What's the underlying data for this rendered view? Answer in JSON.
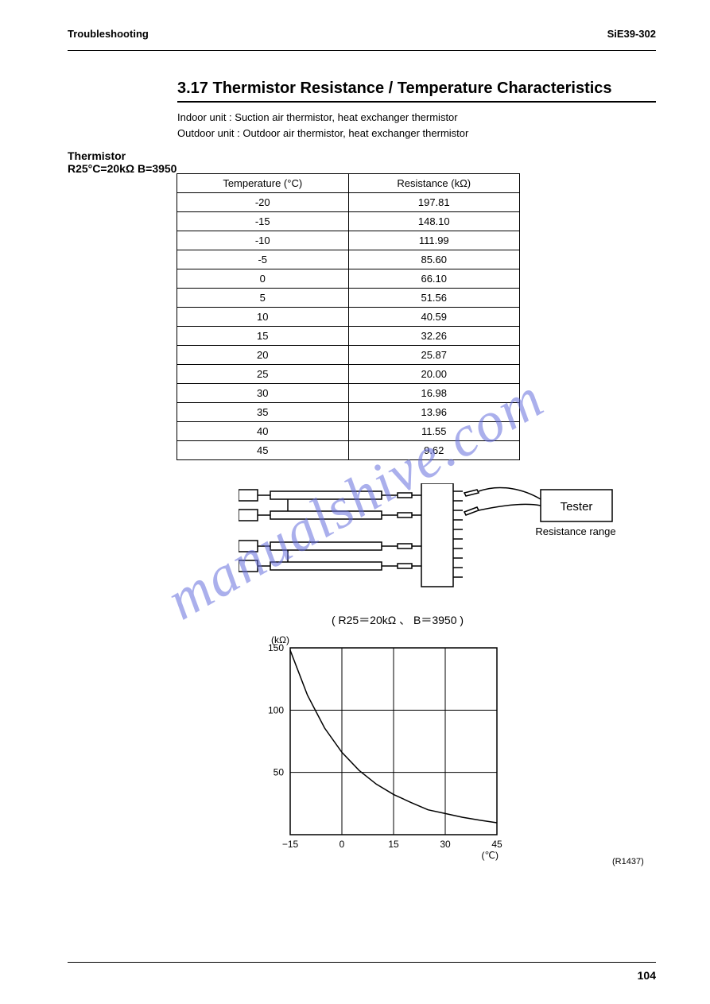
{
  "header": {
    "left": "Troubleshooting",
    "right": "SiE39-302"
  },
  "section": {
    "title": "3.17 Thermistor Resistance / Temperature Characteristics",
    "subtitles": [
      "Indoor unit : Suction air thermistor, heat exchanger thermistor",
      "Outdoor unit : Outdoor air thermistor, heat exchanger thermistor"
    ],
    "sidehead_l1": "Thermistor",
    "sidehead_l2": "R25°C=20kΩ  B=3950"
  },
  "table": {
    "header": [
      "Temperature (°C)",
      "Resistance (kΩ)"
    ],
    "rows": [
      [
        "-20",
        "197.81"
      ],
      [
        "-15",
        "148.10"
      ],
      [
        "-10",
        "111.99"
      ],
      [
        "-5",
        "85.60"
      ],
      [
        "0",
        "66.10"
      ],
      [
        "5",
        "51.56"
      ],
      [
        "10",
        "40.59"
      ],
      [
        "15",
        "32.26"
      ],
      [
        "20",
        "25.87"
      ],
      [
        "25",
        "20.00"
      ],
      [
        "30",
        "16.98"
      ],
      [
        "35",
        "13.96"
      ],
      [
        "40",
        "11.55"
      ],
      [
        "45",
        "9.62"
      ]
    ]
  },
  "diagram": {
    "tester_label": "Tester",
    "range_label": "Resistance range"
  },
  "chart": {
    "title": "( R25＝20kΩ 、 B＝3950 )",
    "type": "line",
    "y_label_top": "(kΩ)",
    "x_label_bottom": "(℃)",
    "xlim": [
      -15,
      45
    ],
    "ylim": [
      0,
      150
    ],
    "xticks": [
      "−15",
      "0",
      "15",
      "30",
      "45"
    ],
    "yticks": [
      "50",
      "100",
      "150"
    ],
    "grid_color": "#000000",
    "line_color": "#000000",
    "curve_points": [
      {
        "x": -15,
        "y": 148.1
      },
      {
        "x": -10,
        "y": 112.0
      },
      {
        "x": -5,
        "y": 85.6
      },
      {
        "x": 0,
        "y": 66.1
      },
      {
        "x": 5,
        "y": 51.6
      },
      {
        "x": 10,
        "y": 40.6
      },
      {
        "x": 15,
        "y": 32.3
      },
      {
        "x": 20,
        "y": 25.9
      },
      {
        "x": 25,
        "y": 20.0
      },
      {
        "x": 30,
        "y": 17.0
      },
      {
        "x": 35,
        "y": 14.0
      },
      {
        "x": 40,
        "y": 11.6
      },
      {
        "x": 45,
        "y": 9.6
      }
    ],
    "background_color": "#ffffff",
    "line_width": 1.5
  },
  "figure_code": "(R1437)",
  "page_number": "104",
  "watermark": "manualshive.com"
}
